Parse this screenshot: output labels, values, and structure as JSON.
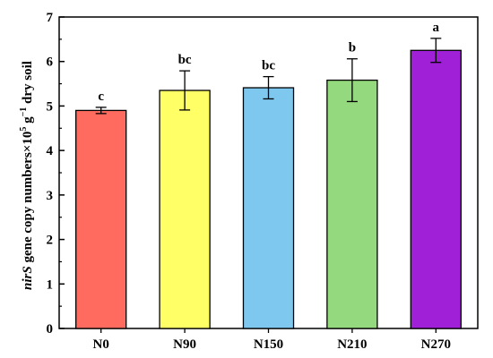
{
  "chart_data": {
    "type": "bar",
    "categories": [
      "N0",
      "N90",
      "N150",
      "N210",
      "N270"
    ],
    "values": [
      4.9,
      5.35,
      5.41,
      5.58,
      6.25
    ],
    "errors": [
      0.07,
      0.44,
      0.25,
      0.48,
      0.27
    ],
    "significance": [
      "c",
      "bc",
      "bc",
      "b",
      "a"
    ],
    "colors": [
      "#ff6b5e",
      "#ffff66",
      "#7ec8ef",
      "#94d97e",
      "#a020d8"
    ],
    "ylim": [
      0,
      7
    ],
    "yticks": [
      0,
      1,
      2,
      3,
      4,
      5,
      6,
      7
    ],
    "ylabel": {
      "italic_part": "nirS",
      "text_before_sup": " gene copy numbers×10",
      "sup1": "5",
      "middle": " g",
      "sup2": "−1",
      "text_after": " dry soil"
    },
    "xlabel": "",
    "title": ""
  }
}
